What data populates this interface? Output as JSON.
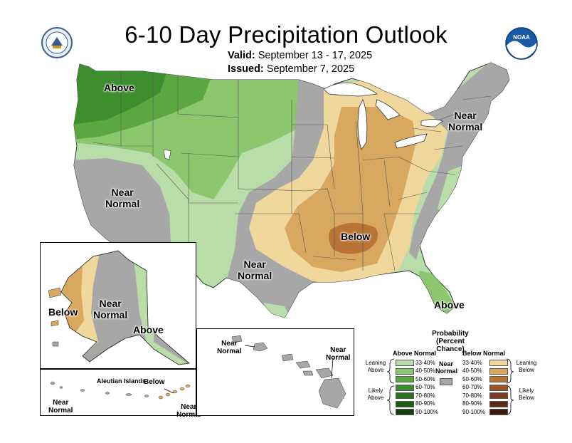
{
  "map": {
    "title": "6-10 Day Precipitation Outlook",
    "valid_label": "Valid:",
    "valid_dates": "September 13 - 17, 2025",
    "issued_label": "Issued:",
    "issued_date": "September 7, 2025"
  },
  "regions": {
    "northwest": "Above",
    "west_near": [
      "Near",
      "Normal"
    ],
    "south_central_near": [
      "Near",
      "Normal"
    ],
    "northeast_near": [
      "Near",
      "Normal"
    ],
    "midsouth_below": "Below",
    "florida_above": "Above"
  },
  "alaska": {
    "below": "Below",
    "near": [
      "Near",
      "Normal"
    ],
    "above": "Above"
  },
  "aleutians": {
    "title": "Aleutian Islands",
    "below": "Below",
    "near_left": [
      "Near",
      "Normal"
    ],
    "near_right": [
      "Near",
      "Normal"
    ]
  },
  "hawaii": {
    "near_left": [
      "Near",
      "Normal"
    ],
    "near_right": [
      "Near",
      "Normal"
    ]
  },
  "legend": {
    "title_line1": "Probability",
    "title_line2": "(Percent Chance)",
    "above_header": "Above Normal",
    "below_header": "Below Normal",
    "near_label": [
      "Near",
      "Normal"
    ],
    "leaning_above": [
      "Leaning",
      "Above"
    ],
    "likely_above": [
      "Likely",
      "Above"
    ],
    "leaning_below": [
      "Leaning",
      "Below"
    ],
    "likely_below": [
      "Likely",
      "Below"
    ],
    "above_classes": [
      {
        "label": "33-40%",
        "color": "#b8dda8"
      },
      {
        "label": "40-50%",
        "color": "#8cc66e"
      },
      {
        "label": "50-60%",
        "color": "#5ba843"
      },
      {
        "label": "60-70%",
        "color": "#3d8c2d"
      },
      {
        "label": "70-80%",
        "color": "#2b7020"
      },
      {
        "label": "80-90%",
        "color": "#1e5a14"
      },
      {
        "label": "90-100%",
        "color": "#133f0b"
      }
    ],
    "below_classes": [
      {
        "label": "33-40%",
        "color": "#f0d79c"
      },
      {
        "label": "40-50%",
        "color": "#d8a860"
      },
      {
        "label": "50-60%",
        "color": "#b87434"
      },
      {
        "label": "60-70%",
        "color": "#9a5428"
      },
      {
        "label": "70-80%",
        "color": "#7a3e1e"
      },
      {
        "label": "80-90%",
        "color": "#5c2a14"
      },
      {
        "label": "90-100%",
        "color": "#3a1a0c"
      }
    ],
    "near_color": "#a7a7a7"
  },
  "logos": {
    "left": "doc-seal-logo",
    "right": "noaa-logo"
  }
}
